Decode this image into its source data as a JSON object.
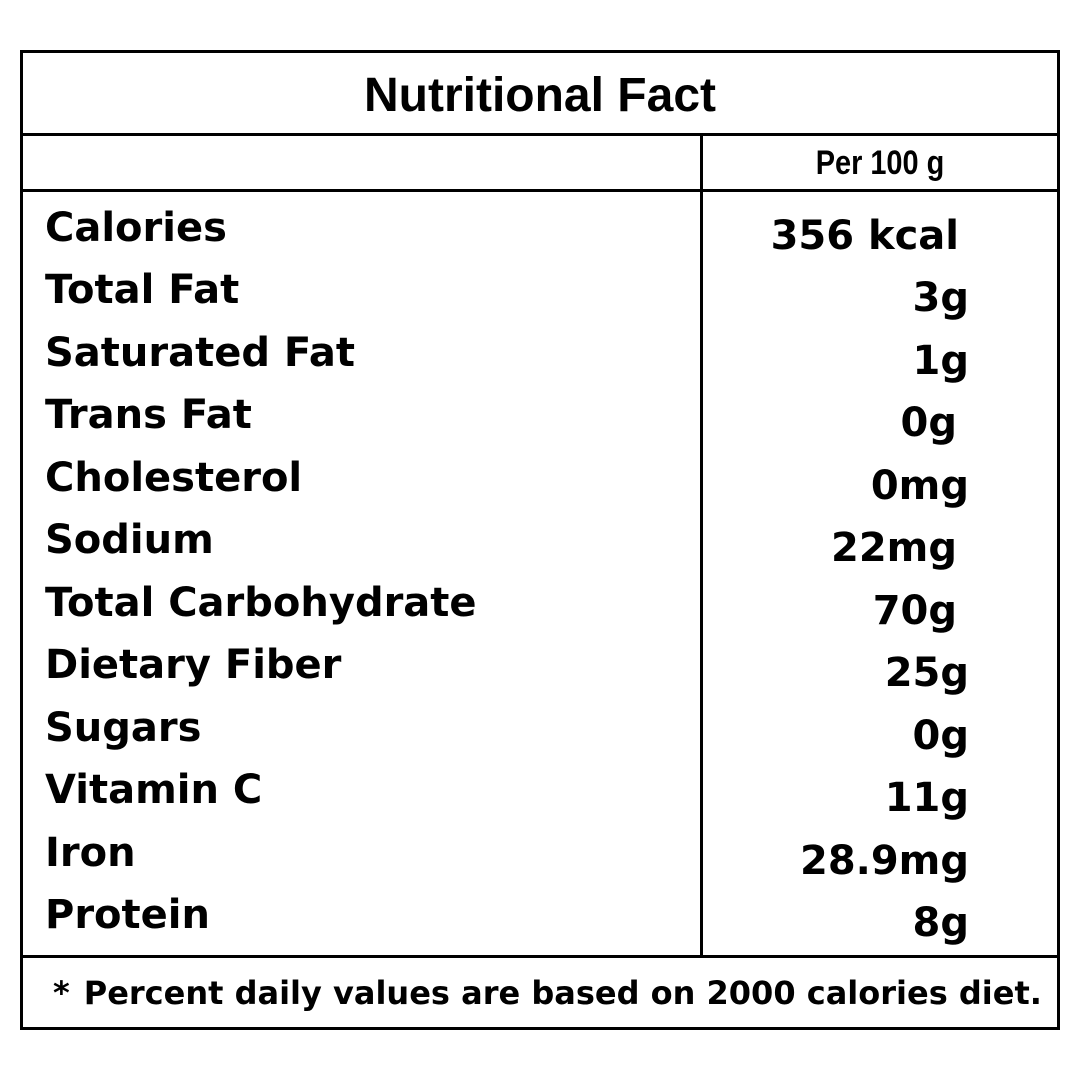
{
  "title": "Nutritional Fact",
  "column_header": "Per 100 g",
  "rows": [
    {
      "name": "Calories",
      "value": "356 kcal"
    },
    {
      "name": "Total Fat",
      "value": "3g"
    },
    {
      "name": "Saturated Fat",
      "value": "1g"
    },
    {
      "name": "Trans Fat",
      "value": "0g"
    },
    {
      "name": "Cholesterol",
      "value": "0mg"
    },
    {
      "name": "Sodium",
      "value": "22mg"
    },
    {
      "name": "Total Carbohydrate",
      "value": "70g"
    },
    {
      "name": "Dietary Fiber",
      "value": "25g"
    },
    {
      "name": "Sugars",
      "value": "0g"
    },
    {
      "name": "Vitamin C",
      "value": "11g"
    },
    {
      "name": "Iron",
      "value": "28.9mg"
    },
    {
      "name": "Protein",
      "value": "8g"
    }
  ],
  "footnote": {
    "marker": "*",
    "text": "Percent daily values are based on 2000 calories diet."
  }
}
